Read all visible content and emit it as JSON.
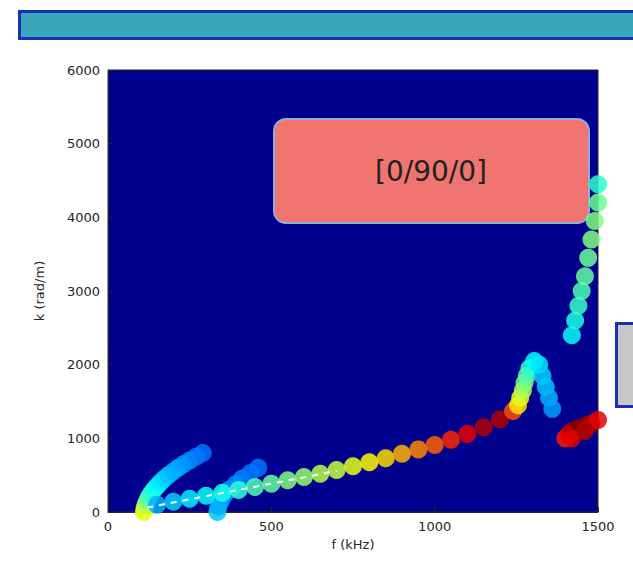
{
  "chart_data": {
    "type": "heatmap",
    "x_label": "f (kHz)",
    "y_label": "k (rad/m)",
    "xlim": [
      0,
      1500
    ],
    "xticks": [
      0,
      500,
      1000,
      1500
    ],
    "ylim": [
      0,
      6000
    ],
    "yticks": [
      0,
      1000,
      2000,
      3000,
      4000,
      5000,
      6000
    ],
    "annotations": [
      {
        "text": "[0/90/0]"
      }
    ],
    "color_range": [
      0,
      1
    ],
    "cells": [
      [
        110,
        0,
        0.6
      ],
      [
        112,
        50,
        0.6
      ],
      [
        115,
        100,
        0.55
      ],
      [
        120,
        150,
        0.5
      ],
      [
        125,
        200,
        0.45
      ],
      [
        132,
        250,
        0.42
      ],
      [
        140,
        300,
        0.4
      ],
      [
        150,
        350,
        0.38
      ],
      [
        160,
        400,
        0.36
      ],
      [
        172,
        450,
        0.34
      ],
      [
        185,
        500,
        0.32
      ],
      [
        200,
        550,
        0.3
      ],
      [
        215,
        600,
        0.3
      ],
      [
        232,
        650,
        0.28
      ],
      [
        250,
        700,
        0.27
      ],
      [
        270,
        750,
        0.25
      ],
      [
        290,
        800,
        0.24
      ],
      [
        335,
        0,
        0.32
      ],
      [
        338,
        75,
        0.3
      ],
      [
        345,
        150,
        0.3
      ],
      [
        355,
        225,
        0.28
      ],
      [
        370,
        300,
        0.28
      ],
      [
        390,
        375,
        0.26
      ],
      [
        410,
        450,
        0.26
      ],
      [
        435,
        525,
        0.24
      ],
      [
        460,
        600,
        0.24
      ],
      [
        150,
        100,
        0.3
      ],
      [
        200,
        140,
        0.33
      ],
      [
        250,
        180,
        0.36
      ],
      [
        300,
        220,
        0.38
      ],
      [
        350,
        260,
        0.4
      ],
      [
        400,
        300,
        0.42
      ],
      [
        450,
        340,
        0.45
      ],
      [
        500,
        385,
        0.47
      ],
      [
        550,
        430,
        0.5
      ],
      [
        600,
        475,
        0.52
      ],
      [
        650,
        520,
        0.55
      ],
      [
        700,
        570,
        0.57
      ],
      [
        750,
        620,
        0.6
      ],
      [
        800,
        675,
        0.63
      ],
      [
        850,
        730,
        0.66
      ],
      [
        900,
        790,
        0.7
      ],
      [
        950,
        850,
        0.74
      ],
      [
        1000,
        910,
        0.78
      ],
      [
        1050,
        980,
        0.84
      ],
      [
        1100,
        1060,
        0.9
      ],
      [
        1150,
        1150,
        0.95
      ],
      [
        1200,
        1260,
        0.95
      ],
      [
        1240,
        1370,
        0.8
      ],
      [
        1255,
        1450,
        0.65
      ],
      [
        1262,
        1550,
        0.6
      ],
      [
        1270,
        1650,
        0.55
      ],
      [
        1275,
        1750,
        0.5
      ],
      [
        1282,
        1850,
        0.46
      ],
      [
        1290,
        1950,
        0.42
      ],
      [
        1305,
        2050,
        0.38
      ],
      [
        1320,
        2000,
        0.35
      ],
      [
        1330,
        1850,
        0.33
      ],
      [
        1340,
        1700,
        0.32
      ],
      [
        1350,
        1550,
        0.3
      ],
      [
        1360,
        1400,
        0.28
      ],
      [
        1400,
        1000,
        0.85
      ],
      [
        1410,
        1050,
        0.9
      ],
      [
        1420,
        1100,
        0.95
      ],
      [
        1435,
        1130,
        1.0
      ],
      [
        1450,
        1150,
        1.0
      ],
      [
        1465,
        1180,
        0.98
      ],
      [
        1480,
        1200,
        0.95
      ],
      [
        1500,
        1250,
        0.9
      ],
      [
        1420,
        1000,
        0.9
      ],
      [
        1460,
        1100,
        0.95
      ],
      [
        1420,
        2400,
        0.38
      ],
      [
        1430,
        2600,
        0.4
      ],
      [
        1440,
        2800,
        0.43
      ],
      [
        1450,
        3000,
        0.45
      ],
      [
        1460,
        3200,
        0.47
      ],
      [
        1470,
        3450,
        0.48
      ],
      [
        1480,
        3700,
        0.5
      ],
      [
        1490,
        3950,
        0.5
      ],
      [
        1500,
        4200,
        0.48
      ],
      [
        1500,
        4450,
        0.42
      ]
    ],
    "series": [
      {
        "type": "line",
        "line_style": "dashed",
        "color": "#ffffff",
        "x": [
          120,
          200,
          300,
          400,
          500,
          600,
          700
        ],
        "values": [
          60,
          130,
          215,
          300,
          385,
          470,
          560
        ]
      }
    ]
  }
}
